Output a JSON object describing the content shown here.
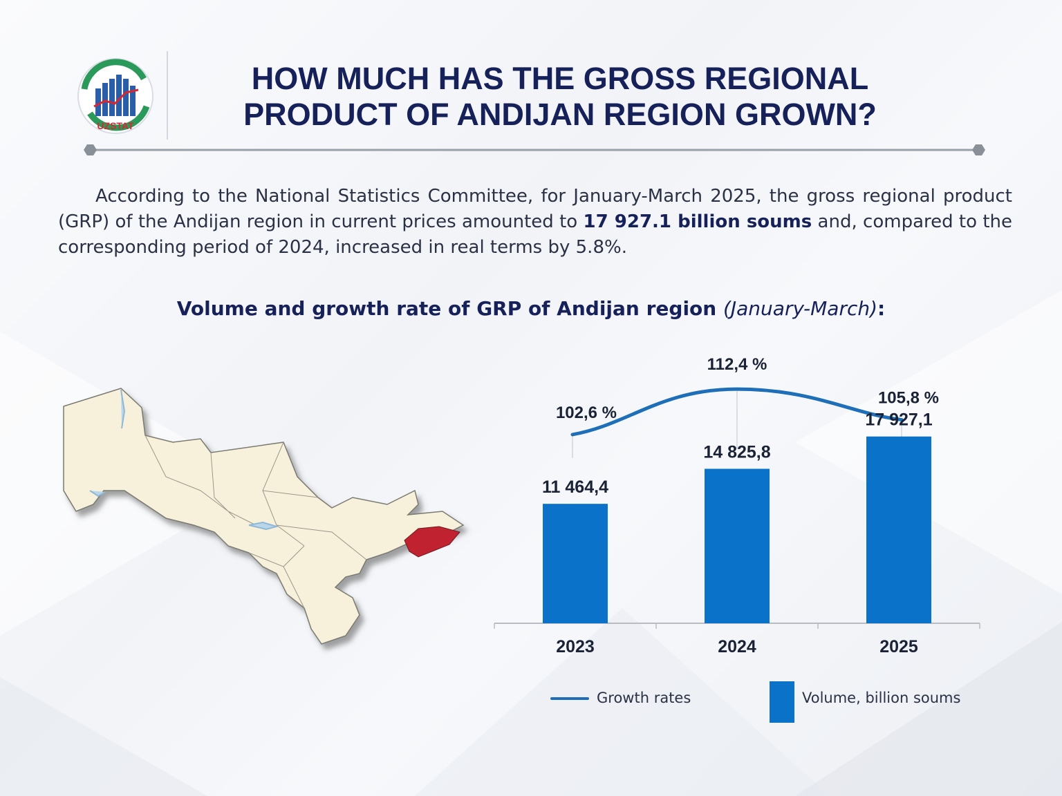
{
  "logo": {
    "text": "UZSTAT"
  },
  "title": {
    "line1": "HOW MUCH HAS THE GROSS REGIONAL",
    "line2": "PRODUCT OF ANDIJAN REGION GROWN?"
  },
  "intro": {
    "before": "According to the National Statistics Committee, for January-March 2025, the gross regional product (GRP) of the Andijan region in current prices amounted to ",
    "highlight": "17 927.1 billion soums",
    "after": " and, compared to the corresponding period of 2024, increased in real terms by 5.8%."
  },
  "heading": {
    "main": "Volume and growth rate of GRP of Andijan region ",
    "period": "(January-March)",
    "suffix": ":"
  },
  "colors": {
    "bar": "#0a72c8",
    "line": "#1f6fb8",
    "title": "#16215a",
    "highlight_region": "#c0232f",
    "map_fill": "#f7f1dc"
  },
  "chart_data": {
    "type": "bar",
    "title": "Volume and growth rate of GRP of Andijan region (January-March):",
    "categories": [
      "2023",
      "2024",
      "2025"
    ],
    "series": [
      {
        "name": "Volume, billion soums",
        "type": "bar",
        "values": [
          11464.4,
          14825.8,
          17927.1
        ],
        "labels": [
          "11 464,4",
          "14 825,8",
          "17 927,1"
        ]
      },
      {
        "name": "Growth rates",
        "type": "line",
        "values": [
          102.6,
          112.4,
          105.8
        ],
        "labels": [
          "102,6 %",
          "112,4 %",
          "105,8 %"
        ]
      }
    ],
    "ylim": [
      0,
      26000
    ],
    "growth_ylim": [
      95,
      120
    ],
    "xlabel": "",
    "ylabel": "",
    "legend": {
      "position": "bottom",
      "line_label": "Growth rates",
      "bar_label": "Volume, billion soums"
    }
  }
}
